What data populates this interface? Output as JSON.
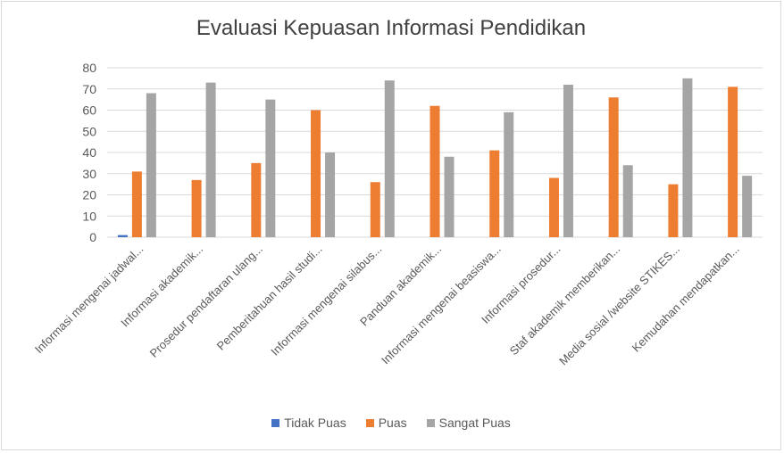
{
  "chart_data": {
    "type": "bar",
    "title": "Evaluasi Kepuasan Informasi Pendidikan",
    "xlabel": "",
    "ylabel": "",
    "ylim": [
      0,
      80
    ],
    "yticks": [
      0,
      10,
      20,
      30,
      40,
      50,
      60,
      70,
      80
    ],
    "grid": true,
    "legend_position": "bottom",
    "categories": [
      "Informasi mengenai jadwal...",
      "Informasi akademik...",
      "Prosedur pendaftaran ulang...",
      "Pemberitahuan hasil studi...",
      "Informasi mengenai silabus...",
      "Panduan akademik...",
      "Informasi mengenai beasiswa...",
      "Informasi prosedur...",
      "Staf akademik memberikan...",
      "Media sosial /website STIKES...",
      "Kemudahan mendapatkan..."
    ],
    "series": [
      {
        "name": "Tidak Puas",
        "color": "#4472c4",
        "values": [
          1,
          0,
          0,
          0,
          0,
          0,
          0,
          0,
          0,
          0,
          0
        ]
      },
      {
        "name": "Puas",
        "color": "#ed7d31",
        "values": [
          31,
          27,
          35,
          60,
          26,
          62,
          41,
          28,
          66,
          25,
          71
        ]
      },
      {
        "name": "Sangat Puas",
        "color": "#a5a5a5",
        "values": [
          68,
          73,
          65,
          40,
          74,
          38,
          59,
          72,
          34,
          75,
          29
        ]
      }
    ]
  }
}
